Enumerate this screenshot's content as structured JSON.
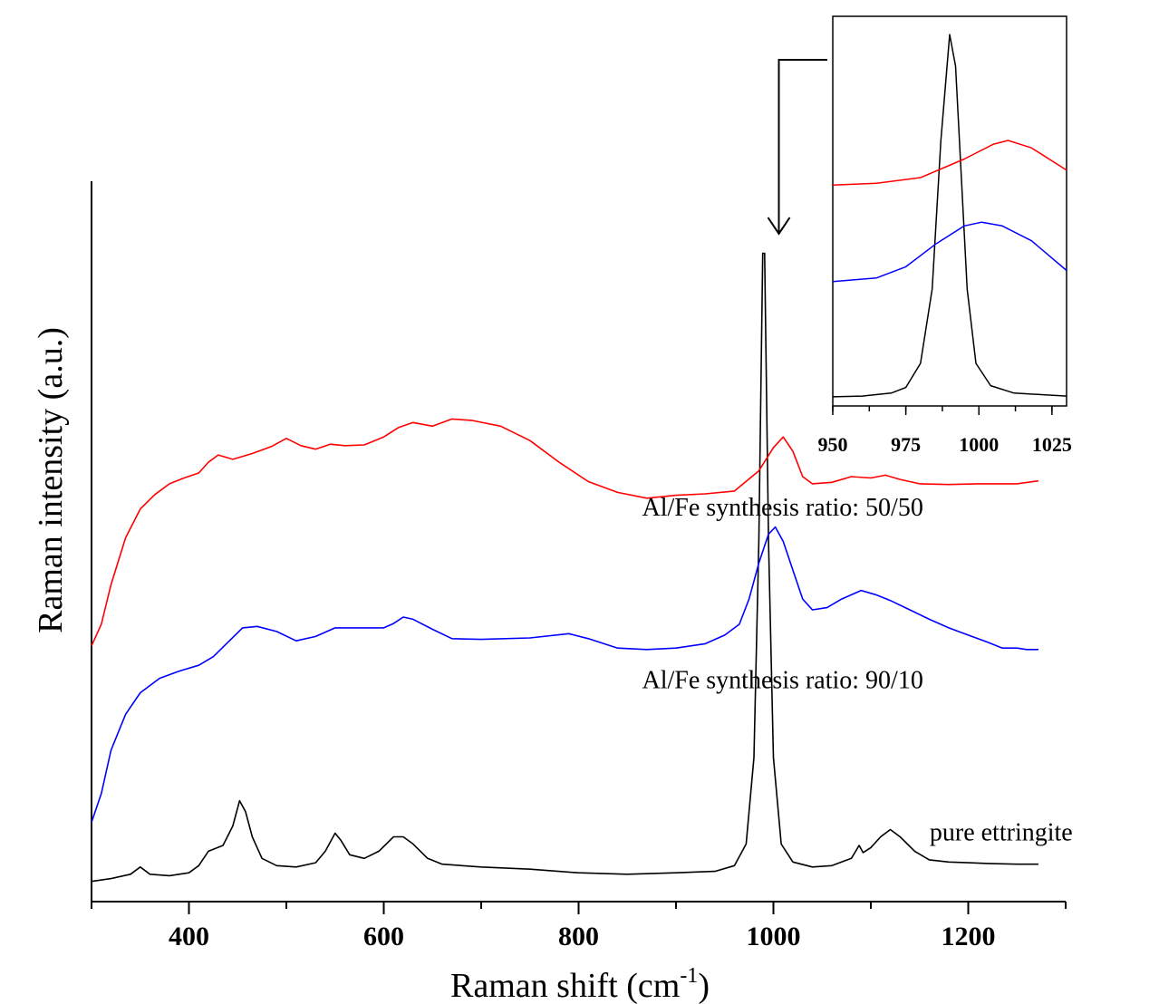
{
  "chart_data": [
    {
      "type": "line",
      "xlabel": "Raman shift (cm",
      "xlabel_sup": "-1",
      "xlabel_close": ")",
      "ylabel": "Raman intensity (a.u.)",
      "xlim": [
        300,
        1300
      ],
      "ylim": [
        0,
        1
      ],
      "x_ticks": [
        400,
        600,
        800,
        1000,
        1200
      ],
      "y_ticks": [],
      "grid": false,
      "legend": "none",
      "series": [
        {
          "name": "pure ettringite",
          "color": "#000000",
          "points": [
            [
              300,
              0.028
            ],
            [
              320,
              0.032
            ],
            [
              340,
              0.038
            ],
            [
              350,
              0.048
            ],
            [
              360,
              0.038
            ],
            [
              380,
              0.036
            ],
            [
              400,
              0.04
            ],
            [
              410,
              0.05
            ],
            [
              420,
              0.07
            ],
            [
              435,
              0.078
            ],
            [
              445,
              0.105
            ],
            [
              452,
              0.14
            ],
            [
              458,
              0.125
            ],
            [
              465,
              0.09
            ],
            [
              475,
              0.06
            ],
            [
              490,
              0.05
            ],
            [
              510,
              0.048
            ],
            [
              530,
              0.054
            ],
            [
              540,
              0.07
            ],
            [
              550,
              0.095
            ],
            [
              556,
              0.085
            ],
            [
              565,
              0.065
            ],
            [
              580,
              0.06
            ],
            [
              595,
              0.07
            ],
            [
              610,
              0.09
            ],
            [
              620,
              0.09
            ],
            [
              630,
              0.08
            ],
            [
              645,
              0.06
            ],
            [
              660,
              0.052
            ],
            [
              700,
              0.048
            ],
            [
              750,
              0.045
            ],
            [
              800,
              0.04
            ],
            [
              850,
              0.038
            ],
            [
              900,
              0.04
            ],
            [
              940,
              0.042
            ],
            [
              960,
              0.05
            ],
            [
              972,
              0.08
            ],
            [
              980,
              0.2
            ],
            [
              985,
              0.5
            ],
            [
              989,
              0.9
            ],
            [
              991,
              0.9
            ],
            [
              995,
              0.5
            ],
            [
              1000,
              0.2
            ],
            [
              1008,
              0.08
            ],
            [
              1020,
              0.055
            ],
            [
              1040,
              0.048
            ],
            [
              1060,
              0.05
            ],
            [
              1080,
              0.06
            ],
            [
              1088,
              0.078
            ],
            [
              1092,
              0.068
            ],
            [
              1100,
              0.075
            ],
            [
              1110,
              0.09
            ],
            [
              1120,
              0.1
            ],
            [
              1130,
              0.09
            ],
            [
              1145,
              0.07
            ],
            [
              1160,
              0.058
            ],
            [
              1180,
              0.055
            ],
            [
              1200,
              0.054
            ],
            [
              1220,
              0.053
            ],
            [
              1250,
              0.052
            ],
            [
              1272,
              0.052
            ]
          ]
        },
        {
          "name": "Al/Fe synthesis ratio: 90/10",
          "color": "#0000ff",
          "points": [
            [
              300,
              0.11
            ],
            [
              310,
              0.15
            ],
            [
              320,
              0.21
            ],
            [
              335,
              0.26
            ],
            [
              350,
              0.29
            ],
            [
              370,
              0.31
            ],
            [
              390,
              0.32
            ],
            [
              410,
              0.328
            ],
            [
              425,
              0.34
            ],
            [
              440,
              0.36
            ],
            [
              455,
              0.38
            ],
            [
              470,
              0.382
            ],
            [
              490,
              0.375
            ],
            [
              510,
              0.362
            ],
            [
              530,
              0.368
            ],
            [
              550,
              0.38
            ],
            [
              580,
              0.38
            ],
            [
              600,
              0.38
            ],
            [
              610,
              0.386
            ],
            [
              620,
              0.395
            ],
            [
              630,
              0.392
            ],
            [
              650,
              0.378
            ],
            [
              670,
              0.365
            ],
            [
              700,
              0.364
            ],
            [
              750,
              0.366
            ],
            [
              790,
              0.372
            ],
            [
              810,
              0.365
            ],
            [
              840,
              0.352
            ],
            [
              870,
              0.35
            ],
            [
              900,
              0.352
            ],
            [
              930,
              0.358
            ],
            [
              950,
              0.37
            ],
            [
              965,
              0.385
            ],
            [
              975,
              0.42
            ],
            [
              985,
              0.47
            ],
            [
              995,
              0.51
            ],
            [
              1002,
              0.52
            ],
            [
              1010,
              0.5
            ],
            [
              1020,
              0.46
            ],
            [
              1030,
              0.42
            ],
            [
              1040,
              0.405
            ],
            [
              1055,
              0.408
            ],
            [
              1070,
              0.42
            ],
            [
              1090,
              0.432
            ],
            [
              1105,
              0.426
            ],
            [
              1120,
              0.418
            ],
            [
              1140,
              0.405
            ],
            [
              1160,
              0.392
            ],
            [
              1180,
              0.38
            ],
            [
              1200,
              0.37
            ],
            [
              1220,
              0.36
            ],
            [
              1235,
              0.352
            ],
            [
              1250,
              0.352
            ],
            [
              1260,
              0.35
            ],
            [
              1272,
              0.35
            ]
          ]
        },
        {
          "name": "Al/Fe synthesis ratio: 50/50",
          "color": "#ff0000",
          "points": [
            [
              300,
              0.355
            ],
            [
              310,
              0.385
            ],
            [
              320,
              0.44
            ],
            [
              335,
              0.505
            ],
            [
              350,
              0.545
            ],
            [
              365,
              0.565
            ],
            [
              380,
              0.58
            ],
            [
              395,
              0.588
            ],
            [
              410,
              0.595
            ],
            [
              420,
              0.61
            ],
            [
              430,
              0.62
            ],
            [
              445,
              0.614
            ],
            [
              465,
              0.622
            ],
            [
              485,
              0.632
            ],
            [
              500,
              0.643
            ],
            [
              515,
              0.633
            ],
            [
              530,
              0.628
            ],
            [
              545,
              0.635
            ],
            [
              560,
              0.633
            ],
            [
              580,
              0.634
            ],
            [
              600,
              0.645
            ],
            [
              615,
              0.658
            ],
            [
              630,
              0.665
            ],
            [
              650,
              0.66
            ],
            [
              670,
              0.67
            ],
            [
              690,
              0.668
            ],
            [
              720,
              0.66
            ],
            [
              750,
              0.64
            ],
            [
              780,
              0.61
            ],
            [
              810,
              0.583
            ],
            [
              840,
              0.568
            ],
            [
              870,
              0.56
            ],
            [
              900,
              0.564
            ],
            [
              930,
              0.566
            ],
            [
              960,
              0.57
            ],
            [
              985,
              0.598
            ],
            [
              1000,
              0.63
            ],
            [
              1010,
              0.645
            ],
            [
              1020,
              0.625
            ],
            [
              1030,
              0.59
            ],
            [
              1040,
              0.58
            ],
            [
              1060,
              0.582
            ],
            [
              1080,
              0.59
            ],
            [
              1100,
              0.588
            ],
            [
              1115,
              0.592
            ],
            [
              1130,
              0.586
            ],
            [
              1150,
              0.58
            ],
            [
              1180,
              0.579
            ],
            [
              1210,
              0.58
            ],
            [
              1250,
              0.58
            ],
            [
              1272,
              0.584
            ]
          ]
        }
      ],
      "annotations": [
        {
          "text": "Al/Fe synthesis ratio: 50/50",
          "x": 1000,
          "y": 0.536
        },
        {
          "text": "Al/Fe synthesis ratio: 90/10",
          "x": 1000,
          "y": 0.296
        },
        {
          "text": "pure ettringite",
          "x": 1165,
          "y": 0.085
        }
      ]
    },
    {
      "type": "line",
      "title": "",
      "xlim": [
        950,
        1030
      ],
      "ylim": [
        0,
        1
      ],
      "x_ticks": [
        950,
        975,
        1000,
        1025
      ],
      "grid": false,
      "legend": "none",
      "series": [
        {
          "name": "pure ettringite",
          "color": "#000000",
          "points": [
            [
              950,
              0.01
            ],
            [
              960,
              0.012
            ],
            [
              970,
              0.02
            ],
            [
              975,
              0.035
            ],
            [
              980,
              0.1
            ],
            [
              984,
              0.3
            ],
            [
              987,
              0.7
            ],
            [
              990,
              0.985
            ],
            [
              992,
              0.9
            ],
            [
              994,
              0.6
            ],
            [
              996,
              0.3
            ],
            [
              999,
              0.1
            ],
            [
              1004,
              0.04
            ],
            [
              1012,
              0.02
            ],
            [
              1030,
              0.012
            ]
          ]
        },
        {
          "name": "Al/Fe synthesis ratio: 90/10",
          "color": "#0000ff",
          "points": [
            [
              950,
              0.32
            ],
            [
              965,
              0.33
            ],
            [
              975,
              0.36
            ],
            [
              985,
              0.42
            ],
            [
              995,
              0.47
            ],
            [
              1001,
              0.48
            ],
            [
              1008,
              0.47
            ],
            [
              1018,
              0.43
            ],
            [
              1030,
              0.35
            ]
          ]
        },
        {
          "name": "Al/Fe synthesis ratio: 50/50",
          "color": "#ff0000",
          "points": [
            [
              950,
              0.58
            ],
            [
              965,
              0.585
            ],
            [
              980,
              0.6
            ],
            [
              995,
              0.65
            ],
            [
              1005,
              0.69
            ],
            [
              1010,
              0.7
            ],
            [
              1018,
              0.68
            ],
            [
              1030,
              0.62
            ]
          ]
        }
      ]
    }
  ],
  "inset_callout": {
    "target_x": 1000
  }
}
